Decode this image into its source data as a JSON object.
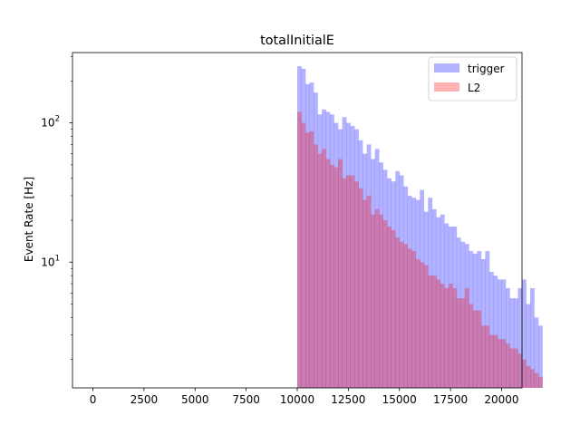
{
  "chart_data": {
    "type": "bar",
    "title": "totalInitialE",
    "xlabel": "",
    "ylabel": "Event Rate [Hz]",
    "xlim": [
      -1000,
      21000
    ],
    "ylim": [
      1.25,
      320
    ],
    "yscale": "log",
    "xticks": [
      0,
      2500,
      5000,
      7500,
      10000,
      12500,
      15000,
      17500,
      20000
    ],
    "yticks": [
      10,
      100
    ],
    "ytick_labels": [
      "10^1",
      "10^2"
    ],
    "grid": false,
    "legend_position": "top-right",
    "bin_start": 10000,
    "bin_width": 200,
    "series": [
      {
        "name": "trigger",
        "color": "#0000ff",
        "alpha": 0.3,
        "values": [
          255,
          245,
          190,
          195,
          165,
          115,
          125,
          120,
          115,
          100,
          90,
          110,
          100,
          95,
          90,
          75,
          60,
          70,
          55,
          65,
          52,
          46,
          40,
          38,
          45,
          42,
          35,
          30,
          29,
          28,
          33,
          23,
          29,
          24,
          21,
          22,
          19,
          18,
          18,
          15,
          14,
          13.5,
          12,
          11.5,
          12,
          10.5,
          12,
          8.5,
          8,
          7.5,
          7.5,
          6.5,
          5.5,
          5.5,
          6.5,
          7.5,
          5,
          6.5,
          4,
          3.5
        ]
      },
      {
        "name": "L2",
        "color": "#ff0000",
        "alpha": 0.3,
        "values": [
          120,
          100,
          85,
          87,
          70,
          60,
          65,
          55,
          50,
          48,
          55,
          40,
          42,
          42,
          38,
          34,
          28,
          30,
          22,
          24,
          22,
          20,
          18,
          17,
          15,
          14,
          13.5,
          12.5,
          12,
          10.5,
          10,
          9.5,
          8,
          8,
          7.5,
          7,
          6.5,
          7,
          6.5,
          5.5,
          5.5,
          6.5,
          5,
          4.5,
          4.5,
          3.5,
          3.5,
          3,
          3,
          2.8,
          2.8,
          2.6,
          2.4,
          2.4,
          2.2,
          2,
          1.8,
          1.7,
          1.6,
          1.5
        ]
      }
    ]
  }
}
